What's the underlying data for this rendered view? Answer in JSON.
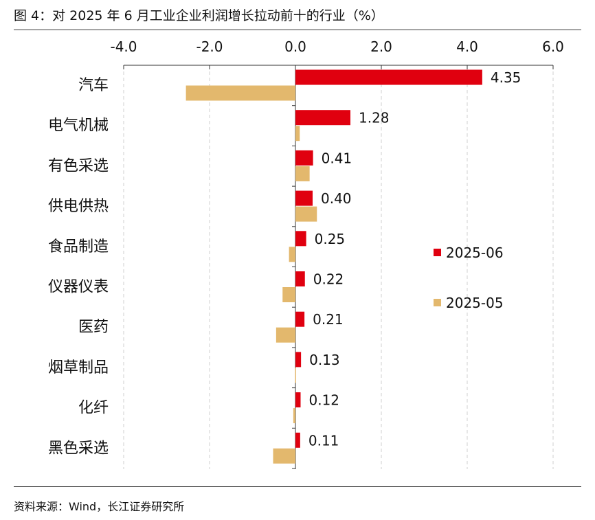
{
  "title": "图 4：对 2025 年 6 月工业企业利润增长拉动前十的行业（%）",
  "source": "资料来源：Wind，长江证券研究所",
  "colors": {
    "series_1": "#e0000f",
    "series_2": "#e3b86d",
    "grid": "#cfcfcf",
    "axis": "#333333"
  },
  "chart_data": {
    "type": "bar",
    "orientation": "horizontal",
    "categories": [
      "汽车",
      "电气机械",
      "有色采选",
      "供电供热",
      "食品制造",
      "仪器仪表",
      "医药",
      "烟草制品",
      "化纤",
      "黑色采选"
    ],
    "series": [
      {
        "name": "2025-06",
        "values": [
          4.35,
          1.28,
          0.41,
          0.4,
          0.25,
          0.22,
          0.21,
          0.13,
          0.12,
          0.11
        ]
      },
      {
        "name": "2025-05",
        "values": [
          -2.55,
          0.1,
          0.33,
          0.5,
          -0.15,
          -0.3,
          -0.45,
          -0.01,
          -0.05,
          -0.52
        ]
      }
    ],
    "data_labels": [
      "4.35",
      "1.28",
      "0.41",
      "0.40",
      "0.25",
      "0.22",
      "0.21",
      "0.13",
      "0.12",
      "0.11"
    ],
    "xlim": [
      -4.0,
      6.0
    ],
    "xticks": [
      -4.0,
      -2.0,
      0.0,
      2.0,
      4.0,
      6.0
    ],
    "xtick_labels": [
      "-4.0",
      "-2.0",
      "0.0",
      "2.0",
      "4.0",
      "6.0"
    ],
    "x_axis_position": "top",
    "grid": "vertical dashed",
    "legend": "right"
  }
}
